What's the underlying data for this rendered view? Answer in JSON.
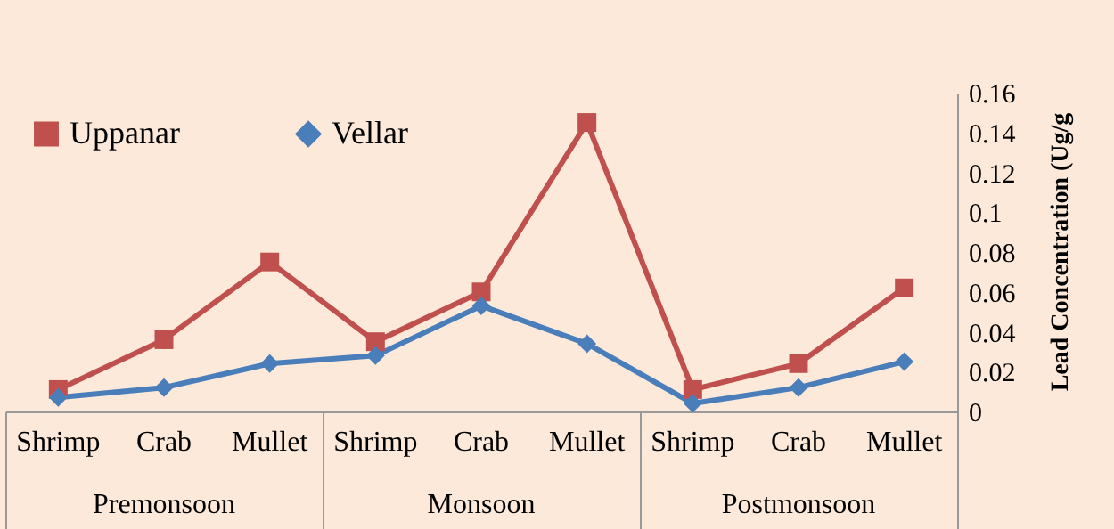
{
  "chart_data": {
    "type": "line",
    "categories": [
      "Shrimp",
      "Crab",
      "Mullet",
      "Shrimp",
      "Crab",
      "Mullet",
      "Shrimp",
      "Crab",
      "Mullet"
    ],
    "series": [
      {
        "name": "Uppanar",
        "color": "#c0504d",
        "marker": "square",
        "values": [
          0.011,
          0.036,
          0.075,
          0.035,
          0.06,
          0.145,
          0.011,
          0.024,
          0.062
        ]
      },
      {
        "name": "Vellar",
        "color": "#4a7ebb",
        "marker": "diamond",
        "values": [
          0.007,
          0.012,
          0.024,
          0.028,
          0.053,
          0.034,
          0.004,
          0.012,
          0.025
        ]
      }
    ],
    "ylabel": "Lead Concentration (Ug/g",
    "ylim": [
      0,
      0.16
    ],
    "yticks": [
      0,
      0.02,
      0.04,
      0.06,
      0.08,
      0.1,
      0.12,
      0.14,
      0.16
    ],
    "annotations": [
      "Premonsoon",
      "Monsoon",
      "Postmonsoon"
    ],
    "legend": "top left",
    "grid": false
  }
}
